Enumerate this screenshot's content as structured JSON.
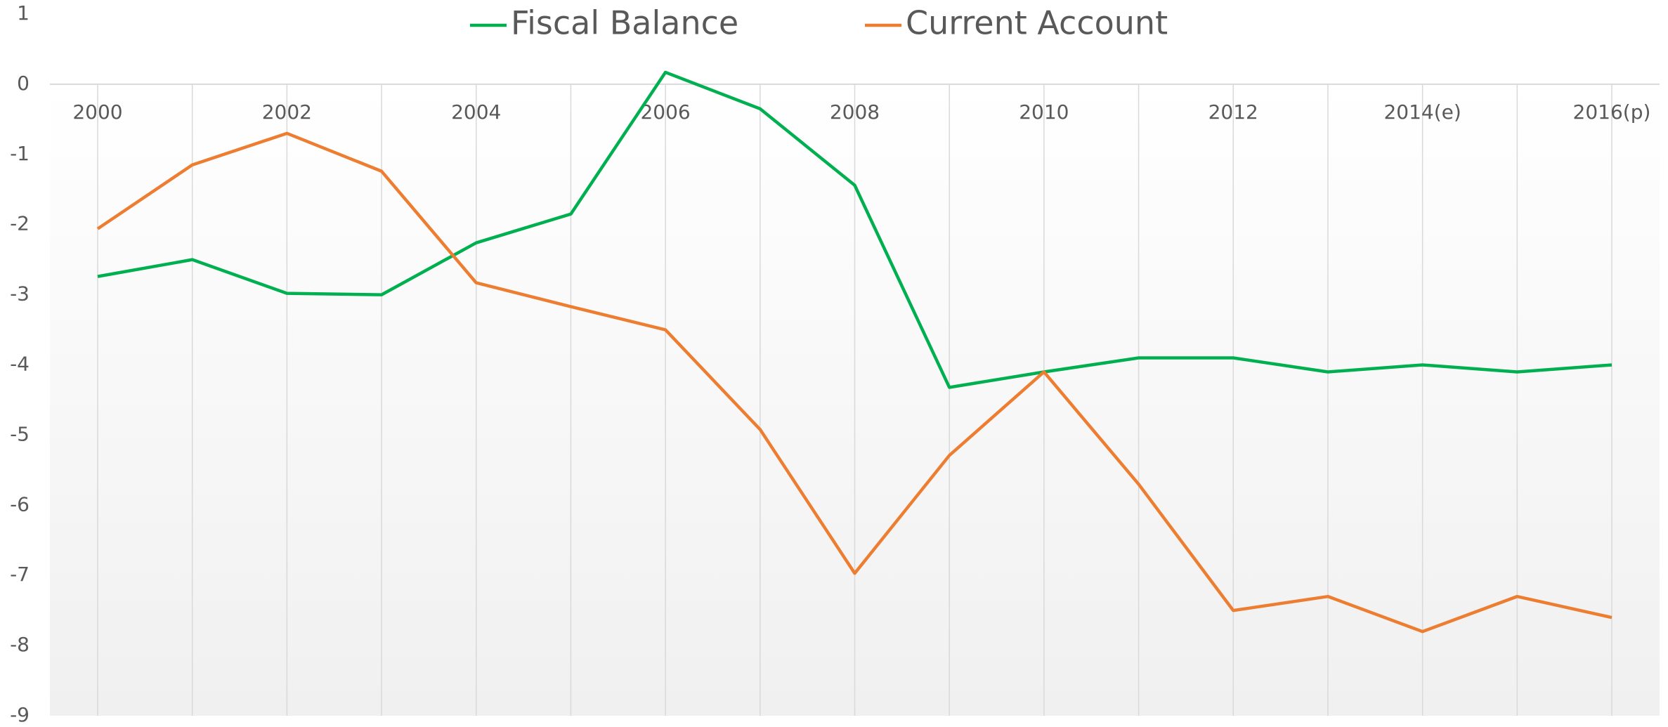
{
  "chart_data": {
    "type": "line",
    "categories": [
      "2000",
      null,
      "2002",
      null,
      "2004",
      null,
      "2006",
      null,
      "2008",
      null,
      "2010",
      null,
      "2012",
      null,
      "2014(e)",
      null,
      "2016(p)"
    ],
    "series": [
      {
        "name": "Fiscal Balance",
        "color": "#00b050",
        "values": [
          -2.74,
          -2.5,
          -2.98,
          -3.0,
          -2.26,
          -1.85,
          0.17,
          -0.35,
          -1.44,
          -4.32,
          -4.1,
          -3.9,
          -3.9,
          -4.1,
          -4.0,
          -4.1,
          -4.0
        ]
      },
      {
        "name": "Current Account",
        "color": "#ed7d31",
        "values": [
          -2.06,
          -1.15,
          -0.7,
          -1.24,
          -2.83,
          -3.17,
          -3.5,
          -4.92,
          -6.97,
          -5.29,
          -4.1,
          -5.7,
          -7.5,
          -7.3,
          -7.8,
          -7.3,
          -7.6
        ]
      }
    ],
    "ylim": [
      -9,
      1
    ],
    "yticks": [
      1,
      0,
      -1,
      -2,
      -3,
      -4,
      -5,
      -6,
      -7,
      -8,
      -9
    ],
    "legend": "top"
  }
}
